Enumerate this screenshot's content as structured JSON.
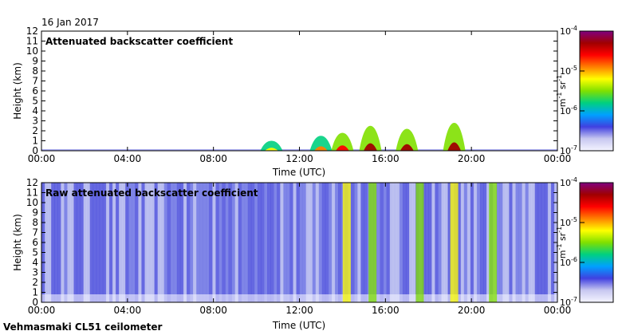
{
  "date": "16 Jan 2017",
  "instrument": "Vehmasmaki CL51 ceilometer",
  "colormap": [
    "#f4f4ff",
    "#c8c8f0",
    "#4040e0",
    "#00a0ff",
    "#00d080",
    "#80e000",
    "#ffff00",
    "#ff8000",
    "#ff0000",
    "#a00000",
    "#800080"
  ],
  "chart_data": [
    {
      "type": "heatmap",
      "title": "Attenuated backscatter coefficient",
      "xlabel": "Time (UTC)",
      "ylabel": "Height (km)",
      "x_ticks": [
        "00:00",
        "04:00",
        "08:00",
        "12:00",
        "16:00",
        "20:00",
        "00:00"
      ],
      "y_ticks": [
        "0",
        "1",
        "2",
        "3",
        "4",
        "5",
        "6",
        "7",
        "8",
        "9",
        "10",
        "11",
        "12"
      ],
      "xlim_hours": [
        0,
        24
      ],
      "ylim_km": [
        0,
        12
      ],
      "colorbar": {
        "ticks": [
          {
            "mantissa": "10",
            "exponent": "-4"
          },
          {
            "mantissa": "10",
            "exponent": "-5"
          },
          {
            "mantissa": "10",
            "exponent": "-6"
          },
          {
            "mantissa": "10",
            "exponent": "-7"
          }
        ],
        "unit_main": "m",
        "unit_exp1": "-1",
        "unit_mid": " sr",
        "unit_exp2": "-1",
        "scale": "log",
        "range": [
          1e-07,
          0.0001
        ]
      },
      "features": [
        {
          "time_h": 10.7,
          "top_km": 1.0,
          "level": 0.6
        },
        {
          "time_h": 13.0,
          "top_km": 1.5,
          "level": 0.7
        },
        {
          "time_h": 14.0,
          "top_km": 1.8,
          "level": 0.8
        },
        {
          "time_h": 15.3,
          "top_km": 2.5,
          "level": 0.9
        },
        {
          "time_h": 17.0,
          "top_km": 2.2,
          "level": 0.85
        },
        {
          "time_h": 19.2,
          "top_km": 2.8,
          "level": 0.9
        }
      ]
    },
    {
      "type": "heatmap",
      "title": "Raw attenuated backscatter coefficient",
      "xlabel": "Time (UTC)",
      "ylabel": "Height (km)",
      "x_ticks": [
        "00:00",
        "04:00",
        "08:00",
        "12:00",
        "16:00",
        "20:00",
        "00:00"
      ],
      "y_ticks": [
        "0",
        "1",
        "2",
        "3",
        "4",
        "5",
        "6",
        "7",
        "8",
        "9",
        "10",
        "11",
        "12"
      ],
      "xlim_hours": [
        0,
        24
      ],
      "ylim_km": [
        0,
        12
      ],
      "colorbar": {
        "ticks": [
          {
            "mantissa": "10",
            "exponent": "-4"
          },
          {
            "mantissa": "10",
            "exponent": "-5"
          },
          {
            "mantissa": "10",
            "exponent": "-6"
          },
          {
            "mantissa": "10",
            "exponent": "-7"
          }
        ],
        "unit_main": "m",
        "unit_exp1": "-1",
        "unit_mid": " sr",
        "unit_exp2": "-1",
        "scale": "log",
        "range": [
          1e-07,
          0.0001
        ]
      },
      "features": [
        {
          "time_h": 14.2,
          "top_km": 12,
          "level": 0.55
        },
        {
          "time_h": 15.4,
          "top_km": 12,
          "level": 0.5
        },
        {
          "time_h": 17.6,
          "top_km": 12,
          "level": 0.5
        },
        {
          "time_h": 19.2,
          "top_km": 12,
          "level": 0.55
        },
        {
          "time_h": 21.0,
          "top_km": 12,
          "level": 0.45
        }
      ]
    }
  ]
}
